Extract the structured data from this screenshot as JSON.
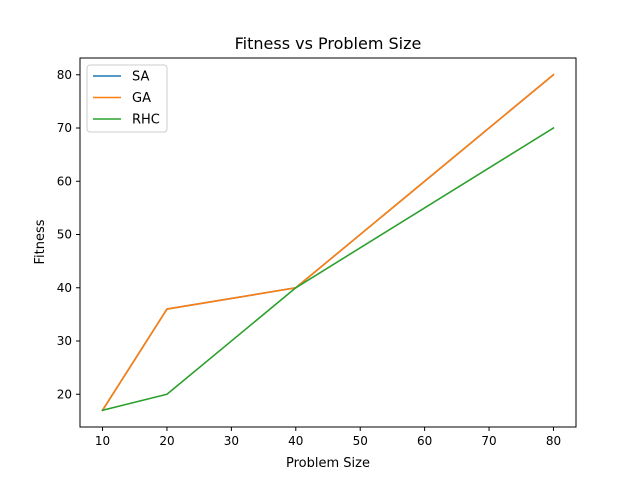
{
  "chart_data": {
    "type": "line",
    "title": "Fitness vs Problem Size",
    "xlabel": "Problem Size",
    "ylabel": "Fitness",
    "x": [
      10,
      20,
      40,
      80
    ],
    "xlim": [
      6.5,
      83.5
    ],
    "ylim": [
      13.85,
      83.15
    ],
    "xticks": [
      10,
      20,
      30,
      40,
      50,
      60,
      70,
      80
    ],
    "yticks": [
      20,
      30,
      40,
      50,
      60,
      70,
      80
    ],
    "grid": false,
    "legend_position": "top-left",
    "series": [
      {
        "name": "SA",
        "values": [
          17,
          36,
          40,
          80
        ],
        "color": "#1f77b4"
      },
      {
        "name": "GA",
        "values": [
          17,
          36,
          40,
          80
        ],
        "color": "#ff7f0e"
      },
      {
        "name": "RHC",
        "values": [
          17,
          20,
          40,
          70
        ],
        "color": "#2ca02c"
      }
    ]
  }
}
